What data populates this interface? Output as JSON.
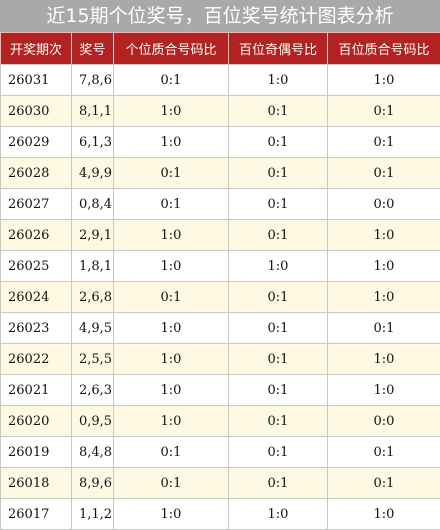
{
  "title": "近15期个位奖号，百位奖号统计图表分析",
  "headers": [
    "开奖期次",
    "奖号",
    "个位质合号码比",
    "百位奇偶号比",
    "百位质合号码比"
  ],
  "rows": [
    [
      "26031",
      "7,8,6",
      "0:1",
      "1:0",
      "1:0"
    ],
    [
      "26030",
      "8,1,1",
      "1:0",
      "0:1",
      "0:1"
    ],
    [
      "26029",
      "6,1,3",
      "1:0",
      "0:1",
      "0:1"
    ],
    [
      "26028",
      "4,9,9",
      "0:1",
      "0:1",
      "0:1"
    ],
    [
      "26027",
      "0,8,4",
      "0:1",
      "0:1",
      "0:0"
    ],
    [
      "26026",
      "2,9,1",
      "1:0",
      "0:1",
      "1:0"
    ],
    [
      "26025",
      "1,8,1",
      "1:0",
      "1:0",
      "1:0"
    ],
    [
      "26024",
      "2,6,8",
      "0:1",
      "0:1",
      "1:0"
    ],
    [
      "26023",
      "4,9,5",
      "1:0",
      "0:1",
      "0:1"
    ],
    [
      "26022",
      "2,5,5",
      "1:0",
      "0:1",
      "1:0"
    ],
    [
      "26021",
      "2,6,3",
      "1:0",
      "0:1",
      "1:0"
    ],
    [
      "26020",
      "0,9,5",
      "1:0",
      "0:1",
      "0:0"
    ],
    [
      "26019",
      "8,4,8",
      "0:1",
      "0:1",
      "0:1"
    ],
    [
      "26018",
      "8,9,6",
      "0:1",
      "0:1",
      "0:1"
    ],
    [
      "26017",
      "1,1,2",
      "1:0",
      "1:0",
      "1:0"
    ]
  ]
}
